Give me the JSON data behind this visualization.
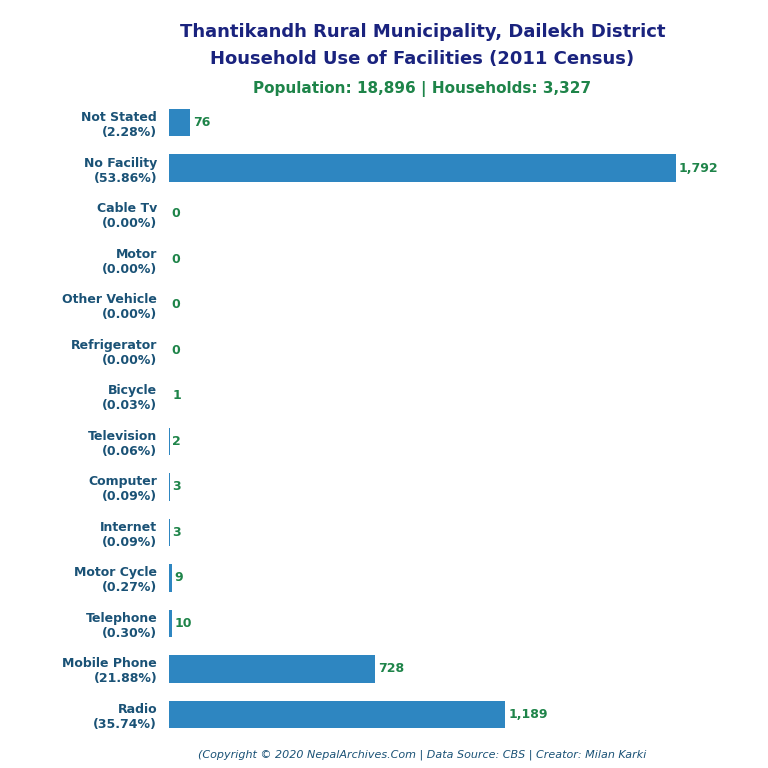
{
  "title_line1": "Thantikandh Rural Municipality, Dailekh District",
  "title_line2": "Household Use of Facilities (2011 Census)",
  "subtitle": "Population: 18,896 | Households: 3,327",
  "copyright": "(Copyright © 2020 NepalArchives.Com | Data Source: CBS | Creator: Milan Karki",
  "categories": [
    "Radio\n(35.74%)",
    "Mobile Phone\n(21.88%)",
    "Telephone\n(0.30%)",
    "Motor Cycle\n(0.27%)",
    "Internet\n(0.09%)",
    "Computer\n(0.09%)",
    "Television\n(0.06%)",
    "Bicycle\n(0.03%)",
    "Refrigerator\n(0.00%)",
    "Other Vehicle\n(0.00%)",
    "Motor\n(0.00%)",
    "Cable Tv\n(0.00%)",
    "No Facility\n(53.86%)",
    "Not Stated\n(2.28%)"
  ],
  "values": [
    1189,
    728,
    10,
    9,
    3,
    3,
    2,
    1,
    0,
    0,
    0,
    0,
    1792,
    76
  ],
  "bar_color": "#2e86c1",
  "label_color": "#1a5276",
  "value_color": "#1e8449",
  "title_color": "#1a237e",
  "subtitle_color": "#1e8449",
  "copyright_color": "#1a5276",
  "background_color": "#ffffff",
  "xlim": [
    0,
    1900
  ]
}
